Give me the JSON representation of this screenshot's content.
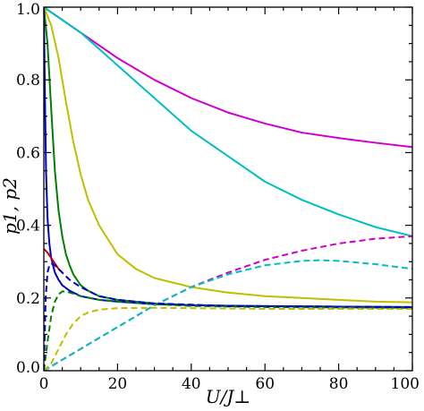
{
  "chart_data": {
    "type": "line",
    "xlabel": "U/J⊥",
    "ylabel": "p1, p2",
    "xlim": [
      0,
      100
    ],
    "ylim": [
      0.0,
      1.0
    ],
    "x_ticks": [
      "0",
      "20",
      "40",
      "60",
      "80",
      "100"
    ],
    "y_ticks": [
      "0.0",
      "0.2",
      "0.4",
      "0.6",
      "0.8",
      "1.0"
    ],
    "grid": false,
    "series": [
      {
        "color": "#cc00cc",
        "style": "solid",
        "x": [
          0,
          10,
          20,
          30,
          40,
          50,
          60,
          70,
          80,
          90,
          100
        ],
        "y": [
          1.0,
          0.93,
          0.86,
          0.8,
          0.75,
          0.71,
          0.68,
          0.655,
          0.64,
          0.627,
          0.615
        ]
      },
      {
        "color": "#00bfbf",
        "style": "solid",
        "x": [
          0,
          10,
          20,
          30,
          40,
          50,
          60,
          70,
          80,
          90,
          100
        ],
        "y": [
          1.0,
          0.93,
          0.84,
          0.75,
          0.66,
          0.59,
          0.52,
          0.47,
          0.43,
          0.395,
          0.37
        ]
      },
      {
        "color": "#bfbf00",
        "style": "solid",
        "x": [
          0,
          2,
          4,
          6,
          8,
          10,
          12,
          15,
          20,
          25,
          30,
          40,
          50,
          60,
          70,
          80,
          90,
          100
        ],
        "y": [
          1.0,
          0.95,
          0.86,
          0.74,
          0.63,
          0.54,
          0.47,
          0.4,
          0.32,
          0.28,
          0.255,
          0.23,
          0.215,
          0.205,
          0.2,
          0.195,
          0.19,
          0.188
        ]
      },
      {
        "color": "#008000",
        "style": "solid",
        "x": [
          0,
          1,
          2,
          3,
          4,
          5,
          6,
          7,
          8,
          10,
          12,
          15,
          20,
          30,
          40,
          60,
          80,
          100
        ],
        "y": [
          1.0,
          0.9,
          0.72,
          0.55,
          0.44,
          0.37,
          0.32,
          0.29,
          0.265,
          0.235,
          0.22,
          0.205,
          0.195,
          0.185,
          0.18,
          0.178,
          0.176,
          0.175
        ]
      },
      {
        "color": "#0000cc",
        "style": "solid",
        "x": [
          0,
          0.3,
          0.6,
          1,
          1.5,
          2,
          3,
          4,
          5,
          7,
          10,
          15,
          20,
          30,
          50,
          100
        ],
        "y": [
          1.0,
          0.75,
          0.55,
          0.42,
          0.35,
          0.31,
          0.27,
          0.25,
          0.235,
          0.22,
          0.205,
          0.195,
          0.19,
          0.183,
          0.178,
          0.175
        ]
      },
      {
        "color": "#cc0000",
        "style": "solid",
        "x": [
          0,
          1,
          2,
          3,
          4,
          5
        ],
        "y": [
          0.335,
          0.325,
          0.31,
          0.295,
          0.28,
          0.27
        ]
      },
      {
        "color": "#cc00cc",
        "style": "dashed",
        "x": [
          0,
          5,
          10,
          15,
          20,
          25,
          30,
          40,
          50,
          60,
          70,
          80,
          90,
          100
        ],
        "y": [
          0.0,
          0.03,
          0.06,
          0.09,
          0.12,
          0.15,
          0.18,
          0.23,
          0.27,
          0.305,
          0.33,
          0.35,
          0.363,
          0.37
        ]
      },
      {
        "color": "#00bfbf",
        "style": "dashed",
        "x": [
          0,
          5,
          10,
          15,
          20,
          25,
          30,
          40,
          50,
          60,
          70,
          75,
          80,
          90,
          100
        ],
        "y": [
          0.0,
          0.03,
          0.06,
          0.09,
          0.12,
          0.15,
          0.18,
          0.23,
          0.265,
          0.29,
          0.302,
          0.304,
          0.302,
          0.293,
          0.28
        ]
      },
      {
        "color": "#bfbf00",
        "style": "dashed",
        "x": [
          0,
          2,
          4,
          6,
          8,
          10,
          12,
          15,
          20,
          30,
          40,
          60,
          80,
          100
        ],
        "y": [
          0.0,
          0.02,
          0.06,
          0.1,
          0.13,
          0.15,
          0.16,
          0.168,
          0.172,
          0.173,
          0.172,
          0.17,
          0.17,
          0.17
        ]
      },
      {
        "color": "#008000",
        "style": "dashed",
        "x": [
          0,
          1,
          2,
          3,
          4,
          5,
          6,
          8,
          10,
          15,
          20,
          30,
          40,
          60,
          100
        ],
        "y": [
          0.0,
          0.08,
          0.15,
          0.19,
          0.21,
          0.218,
          0.218,
          0.212,
          0.205,
          0.195,
          0.19,
          0.183,
          0.178,
          0.175,
          0.173
        ]
      },
      {
        "color": "#0000cc",
        "style": "dashed",
        "x": [
          0,
          0.5,
          1,
          1.5,
          2,
          3,
          4,
          5,
          7,
          10,
          15,
          20,
          30,
          50,
          100
        ],
        "y": [
          0.0,
          0.2,
          0.27,
          0.29,
          0.295,
          0.29,
          0.28,
          0.27,
          0.25,
          0.23,
          0.205,
          0.195,
          0.185,
          0.178,
          0.175
        ]
      }
    ]
  }
}
